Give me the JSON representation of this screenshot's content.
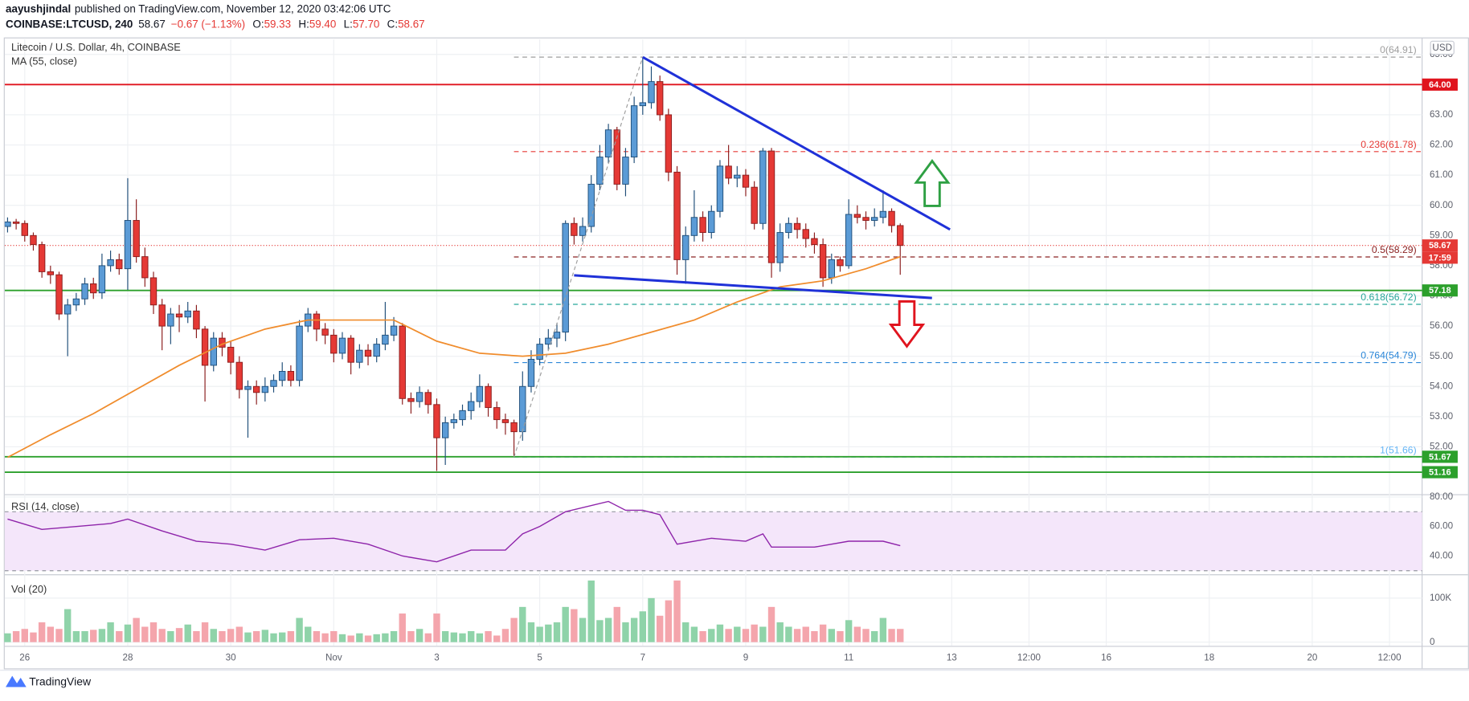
{
  "header": {
    "publisher": "aayushjindal",
    "published": "published on TradingView.com, November 12, 2020 03:42:06 UTC",
    "symbol": "COINBASE:LTCUSD, 240",
    "last": "58.67",
    "change": "−0.67 (−1.13%)",
    "ohlc": [
      [
        "O:",
        "59.33"
      ],
      [
        "H:",
        "59.40"
      ],
      [
        "L:",
        "57.70"
      ],
      [
        "C:",
        "58.67"
      ]
    ]
  },
  "footer": {
    "brand": "TradingView"
  },
  "chart_data": [
    {
      "type": "candlestick",
      "title": "Litecoin / U.S. Dollar, 4h, COINBASE",
      "currency": "USD",
      "up_color": "#5b9bd6",
      "down_color": "#e53935",
      "grid": true,
      "open": [
        59.3,
        59.45,
        59.4,
        59.0,
        58.7,
        57.8,
        57.7,
        56.4,
        56.7,
        56.9,
        57.4,
        57.1,
        58.0,
        58.2,
        57.9,
        59.5,
        58.3,
        57.6,
        56.7,
        56.0,
        56.4,
        56.3,
        56.5,
        55.9,
        54.7,
        55.6,
        55.3,
        54.8,
        53.9,
        54.0,
        53.8,
        54.0,
        54.2,
        54.5,
        54.2,
        56.0,
        56.4,
        55.9,
        55.7,
        55.1,
        55.6,
        54.8,
        55.2,
        55.0,
        55.4,
        55.7,
        56.0,
        53.6,
        53.5,
        53.8,
        53.4,
        52.3,
        52.8,
        52.9,
        53.2,
        53.5,
        54.0,
        53.3,
        52.9,
        52.8,
        52.5,
        54.0,
        54.9,
        55.4,
        55.6,
        55.8,
        59.4,
        59.0,
        59.3,
        60.7,
        61.6,
        62.5,
        60.7,
        61.6,
        63.3,
        63.4,
        64.1,
        63.0,
        61.1,
        58.2,
        59.0,
        59.6,
        59.1,
        59.8,
        61.3,
        60.9,
        61.0,
        60.6,
        59.4,
        61.8,
        58.1,
        59.1,
        59.4,
        59.2,
        58.9,
        58.7,
        57.6,
        58.2,
        58.0,
        59.7,
        59.6,
        59.5,
        59.6,
        59.8,
        59.33
      ],
      "high": [
        59.6,
        59.55,
        59.5,
        59.1,
        58.8,
        58.0,
        57.8,
        56.9,
        57.1,
        57.6,
        57.6,
        58.4,
        58.5,
        58.4,
        60.9,
        60.2,
        58.6,
        57.8,
        56.9,
        56.6,
        56.7,
        56.8,
        56.7,
        56.0,
        55.8,
        55.8,
        55.5,
        55.0,
        54.2,
        54.2,
        54.3,
        54.4,
        54.8,
        54.7,
        56.2,
        56.6,
        56.5,
        56.1,
        55.9,
        55.8,
        55.7,
        55.4,
        55.4,
        55.6,
        56.8,
        56.3,
        56.1,
        53.8,
        54.0,
        53.9,
        53.6,
        53.0,
        53.1,
        53.4,
        53.8,
        54.4,
        54.1,
        53.5,
        53.1,
        52.9,
        54.5,
        55.2,
        55.6,
        55.9,
        56.1,
        59.5,
        59.6,
        59.6,
        61.0,
        62.0,
        62.7,
        62.6,
        61.9,
        63.6,
        64.91,
        64.6,
        64.3,
        63.2,
        61.3,
        59.3,
        60.5,
        59.8,
        60.0,
        61.5,
        62.0,
        61.3,
        61.2,
        60.8,
        61.9,
        61.9,
        59.4,
        59.6,
        59.6,
        59.4,
        59.1,
        58.9,
        58.4,
        58.3,
        60.2,
        60.0,
        59.8,
        59.9,
        60.5,
        59.9,
        59.4
      ],
      "low": [
        59.1,
        59.2,
        58.8,
        58.5,
        57.6,
        57.4,
        56.2,
        55.0,
        56.5,
        56.7,
        56.9,
        56.9,
        57.8,
        57.7,
        57.2,
        58.1,
        57.3,
        56.4,
        55.2,
        55.4,
        55.8,
        56.1,
        55.6,
        53.5,
        54.5,
        55.0,
        54.4,
        53.6,
        52.3,
        53.4,
        53.5,
        53.8,
        54.0,
        54.0,
        54.0,
        55.8,
        55.5,
        55.4,
        54.8,
        54.9,
        54.4,
        54.6,
        54.7,
        54.8,
        55.2,
        55.5,
        53.4,
        53.1,
        53.3,
        53.1,
        51.2,
        51.4,
        52.6,
        52.7,
        52.9,
        53.3,
        53.0,
        52.6,
        52.4,
        51.7,
        52.2,
        53.8,
        54.7,
        55.2,
        55.3,
        55.5,
        58.7,
        58.8,
        59.1,
        60.5,
        61.4,
        60.5,
        60.3,
        61.4,
        63.0,
        63.2,
        62.8,
        60.8,
        57.7,
        57.4,
        58.8,
        58.8,
        58.9,
        59.6,
        60.7,
        60.6,
        60.3,
        59.2,
        59.2,
        57.6,
        57.8,
        58.9,
        58.9,
        58.6,
        58.4,
        57.3,
        57.4,
        57.8,
        57.9,
        59.4,
        59.2,
        59.3,
        59.4,
        59.1,
        57.7
      ],
      "close": [
        59.45,
        59.4,
        59.0,
        58.7,
        57.8,
        57.7,
        56.4,
        56.7,
        56.9,
        57.4,
        57.1,
        58.0,
        58.2,
        57.9,
        59.5,
        58.3,
        57.6,
        56.7,
        56.0,
        56.4,
        56.3,
        56.5,
        55.9,
        54.7,
        55.6,
        55.3,
        54.8,
        53.9,
        54.0,
        53.8,
        54.0,
        54.2,
        54.5,
        54.2,
        56.0,
        56.4,
        55.9,
        55.7,
        55.1,
        55.6,
        54.8,
        55.2,
        55.0,
        55.4,
        55.7,
        56.0,
        53.6,
        53.5,
        53.8,
        53.4,
        52.3,
        52.8,
        52.9,
        53.2,
        53.5,
        54.0,
        53.3,
        52.9,
        52.8,
        52.5,
        54.0,
        54.9,
        55.4,
        55.6,
        55.8,
        59.4,
        59.0,
        59.3,
        60.7,
        61.6,
        62.5,
        60.7,
        61.6,
        63.3,
        63.4,
        64.1,
        63.0,
        61.1,
        58.2,
        59.0,
        59.6,
        59.1,
        59.8,
        61.3,
        60.9,
        61.0,
        60.6,
        59.4,
        61.8,
        58.1,
        59.1,
        59.4,
        59.2,
        58.9,
        58.7,
        57.6,
        58.2,
        58.0,
        59.7,
        59.6,
        59.5,
        59.6,
        59.8,
        59.33,
        58.67
      ],
      "ma": {
        "name": "MA (55, close)",
        "color": "#f08c2c",
        "x": [
          0,
          5,
          10,
          15,
          20,
          25,
          30,
          35,
          40,
          45,
          50,
          55,
          60,
          65,
          70,
          75,
          80,
          85,
          90,
          95,
          100,
          104
        ],
        "values": [
          51.65,
          52.4,
          53.1,
          53.9,
          54.7,
          55.4,
          55.9,
          56.2,
          56.2,
          56.2,
          55.5,
          55.1,
          55.0,
          55.1,
          55.4,
          55.8,
          56.2,
          56.8,
          57.3,
          57.5,
          57.9,
          58.3
        ]
      },
      "xlim": [
        -0.33,
        164.8
      ],
      "xticks": [
        {
          "value": 2,
          "label": "26"
        },
        {
          "value": 14,
          "label": "28"
        },
        {
          "value": 26,
          "label": "30"
        },
        {
          "value": 38,
          "label": "Nov"
        },
        {
          "value": 50,
          "label": "3"
        },
        {
          "value": 62,
          "label": "5"
        },
        {
          "value": 74,
          "label": "7"
        },
        {
          "value": 86,
          "label": "9"
        },
        {
          "value": 98,
          "label": "11"
        },
        {
          "value": 110,
          "label": "13"
        },
        {
          "value": 119,
          "label": "12:00"
        },
        {
          "value": 128,
          "label": "16"
        },
        {
          "value": 140,
          "label": "18"
        },
        {
          "value": 152,
          "label": "20"
        },
        {
          "value": 161,
          "label": "12:00"
        }
      ],
      "ylim": [
        50.46,
        65.5
      ],
      "yticks": [
        {
          "value": 52,
          "label": "52.00"
        },
        {
          "value": 53,
          "label": "53.00"
        },
        {
          "value": 54,
          "label": "54.00"
        },
        {
          "value": 55,
          "label": "55.00"
        },
        {
          "value": 56,
          "label": "56.00"
        },
        {
          "value": 57,
          "label": "57.00"
        },
        {
          "value": 58,
          "label": "58.00"
        },
        {
          "value": 59,
          "label": "59.00"
        },
        {
          "value": 60,
          "label": "60.00"
        },
        {
          "value": 61,
          "label": "61.00"
        },
        {
          "value": 62,
          "label": "62.00"
        },
        {
          "value": 63,
          "label": "63.00"
        },
        {
          "value": 64,
          "label": "64.00"
        },
        {
          "value": 65,
          "label": "65.00"
        }
      ],
      "levels": [
        {
          "value": 64,
          "label": "64.00",
          "color": "#e0141e"
        },
        {
          "value": 57.18,
          "label": "57.18",
          "color": "#2ca02c"
        },
        {
          "value": 51.67,
          "label": "51.67",
          "color": "#2ca02c"
        },
        {
          "value": 51.16,
          "label": "51.16",
          "color": "#2ca02c"
        }
      ],
      "last_price": {
        "value": 58.67,
        "label": "58.67",
        "countdown": "17:59",
        "color": "#e53935"
      },
      "fib": {
        "x": [
          59,
          74
        ],
        "values": [
          51.66,
          64.91
        ],
        "color": "#9e9e9e",
        "levels": [
          {
            "value": 64.91,
            "label": "0(64.91)",
            "color": "#9e9e9e"
          },
          {
            "value": 61.78,
            "label": "0.236(61.78)",
            "color": "#e53935"
          },
          {
            "value": 58.29,
            "label": "0.5(58.29)",
            "color": "#8b2323"
          },
          {
            "value": 56.72,
            "label": "0.618(56.72)",
            "color": "#26a69a"
          },
          {
            "value": 54.79,
            "label": "0.764(54.79)",
            "color": "#2a86d8"
          },
          {
            "value": 51.66,
            "label": "1(51.66)",
            "color": "#64b5f6"
          }
        ]
      },
      "trendlines": [
        {
          "color": "#1f31d8",
          "x": [
            74,
            109.8
          ],
          "values": [
            64.91,
            59.2
          ]
        },
        {
          "color": "#1f31d8",
          "x": [
            66,
            107.7
          ],
          "values": [
            57.68,
            56.93
          ]
        }
      ]
    },
    {
      "type": "line",
      "title": "RSI (14, close)",
      "color": "#8e24aa",
      "band": [
        30,
        70
      ],
      "band_color": "#f4e6fa",
      "x": [
        0,
        4,
        8,
        12,
        14,
        18,
        22,
        26,
        30,
        34,
        38,
        42,
        46,
        50,
        54,
        58,
        60,
        62,
        65,
        70,
        72,
        74,
        76,
        78,
        82,
        86,
        88,
        89,
        94,
        98,
        102,
        104
      ],
      "values": [
        65,
        58,
        60,
        62,
        65,
        57,
        50,
        48,
        44,
        51,
        52,
        48,
        40,
        36,
        44,
        44,
        55,
        60,
        70,
        77,
        71,
        71,
        68,
        48,
        52,
        50,
        55,
        46,
        46,
        50,
        50,
        47
      ],
      "ylim": [
        27.9,
        80.6
      ],
      "yticks": [
        {
          "value": 40,
          "label": "40.00"
        },
        {
          "value": 60,
          "label": "60.00"
        },
        {
          "value": 80,
          "label": "80.00"
        }
      ]
    },
    {
      "type": "bar",
      "title": "Vol (20)",
      "up_color": "#8fd3a9",
      "down_color": "#f4a5ac",
      "values": [
        20000,
        25000,
        30000,
        22000,
        45000,
        35000,
        30000,
        75000,
        25000,
        25000,
        28000,
        30000,
        45000,
        25000,
        40000,
        55000,
        35000,
        45000,
        30000,
        25000,
        32000,
        40000,
        25000,
        45000,
        30000,
        25000,
        30000,
        35000,
        22000,
        25000,
        28000,
        20000,
        22000,
        25000,
        55000,
        35000,
        25000,
        20000,
        25000,
        18000,
        15000,
        20000,
        15000,
        18000,
        20000,
        25000,
        65000,
        25000,
        30000,
        20000,
        65000,
        25000,
        22000,
        20000,
        25000,
        20000,
        25000,
        15000,
        30000,
        55000,
        80000,
        45000,
        35000,
        40000,
        45000,
        80000,
        75000,
        55000,
        140000,
        50000,
        55000,
        80000,
        45000,
        55000,
        70000,
        100000,
        60000,
        95000,
        140000,
        45000,
        35000,
        25000,
        30000,
        40000,
        30000,
        35000,
        30000,
        40000,
        35000,
        80000,
        45000,
        35000,
        30000,
        35000,
        25000,
        40000,
        30000,
        25000,
        50000,
        35000,
        30000,
        25000,
        55000,
        30000,
        30000
      ],
      "ylim": [
        -8500,
        151000
      ],
      "yticks": [
        0,
        {
          "value": 100000,
          "label": "100K"
        }
      ]
    }
  ]
}
